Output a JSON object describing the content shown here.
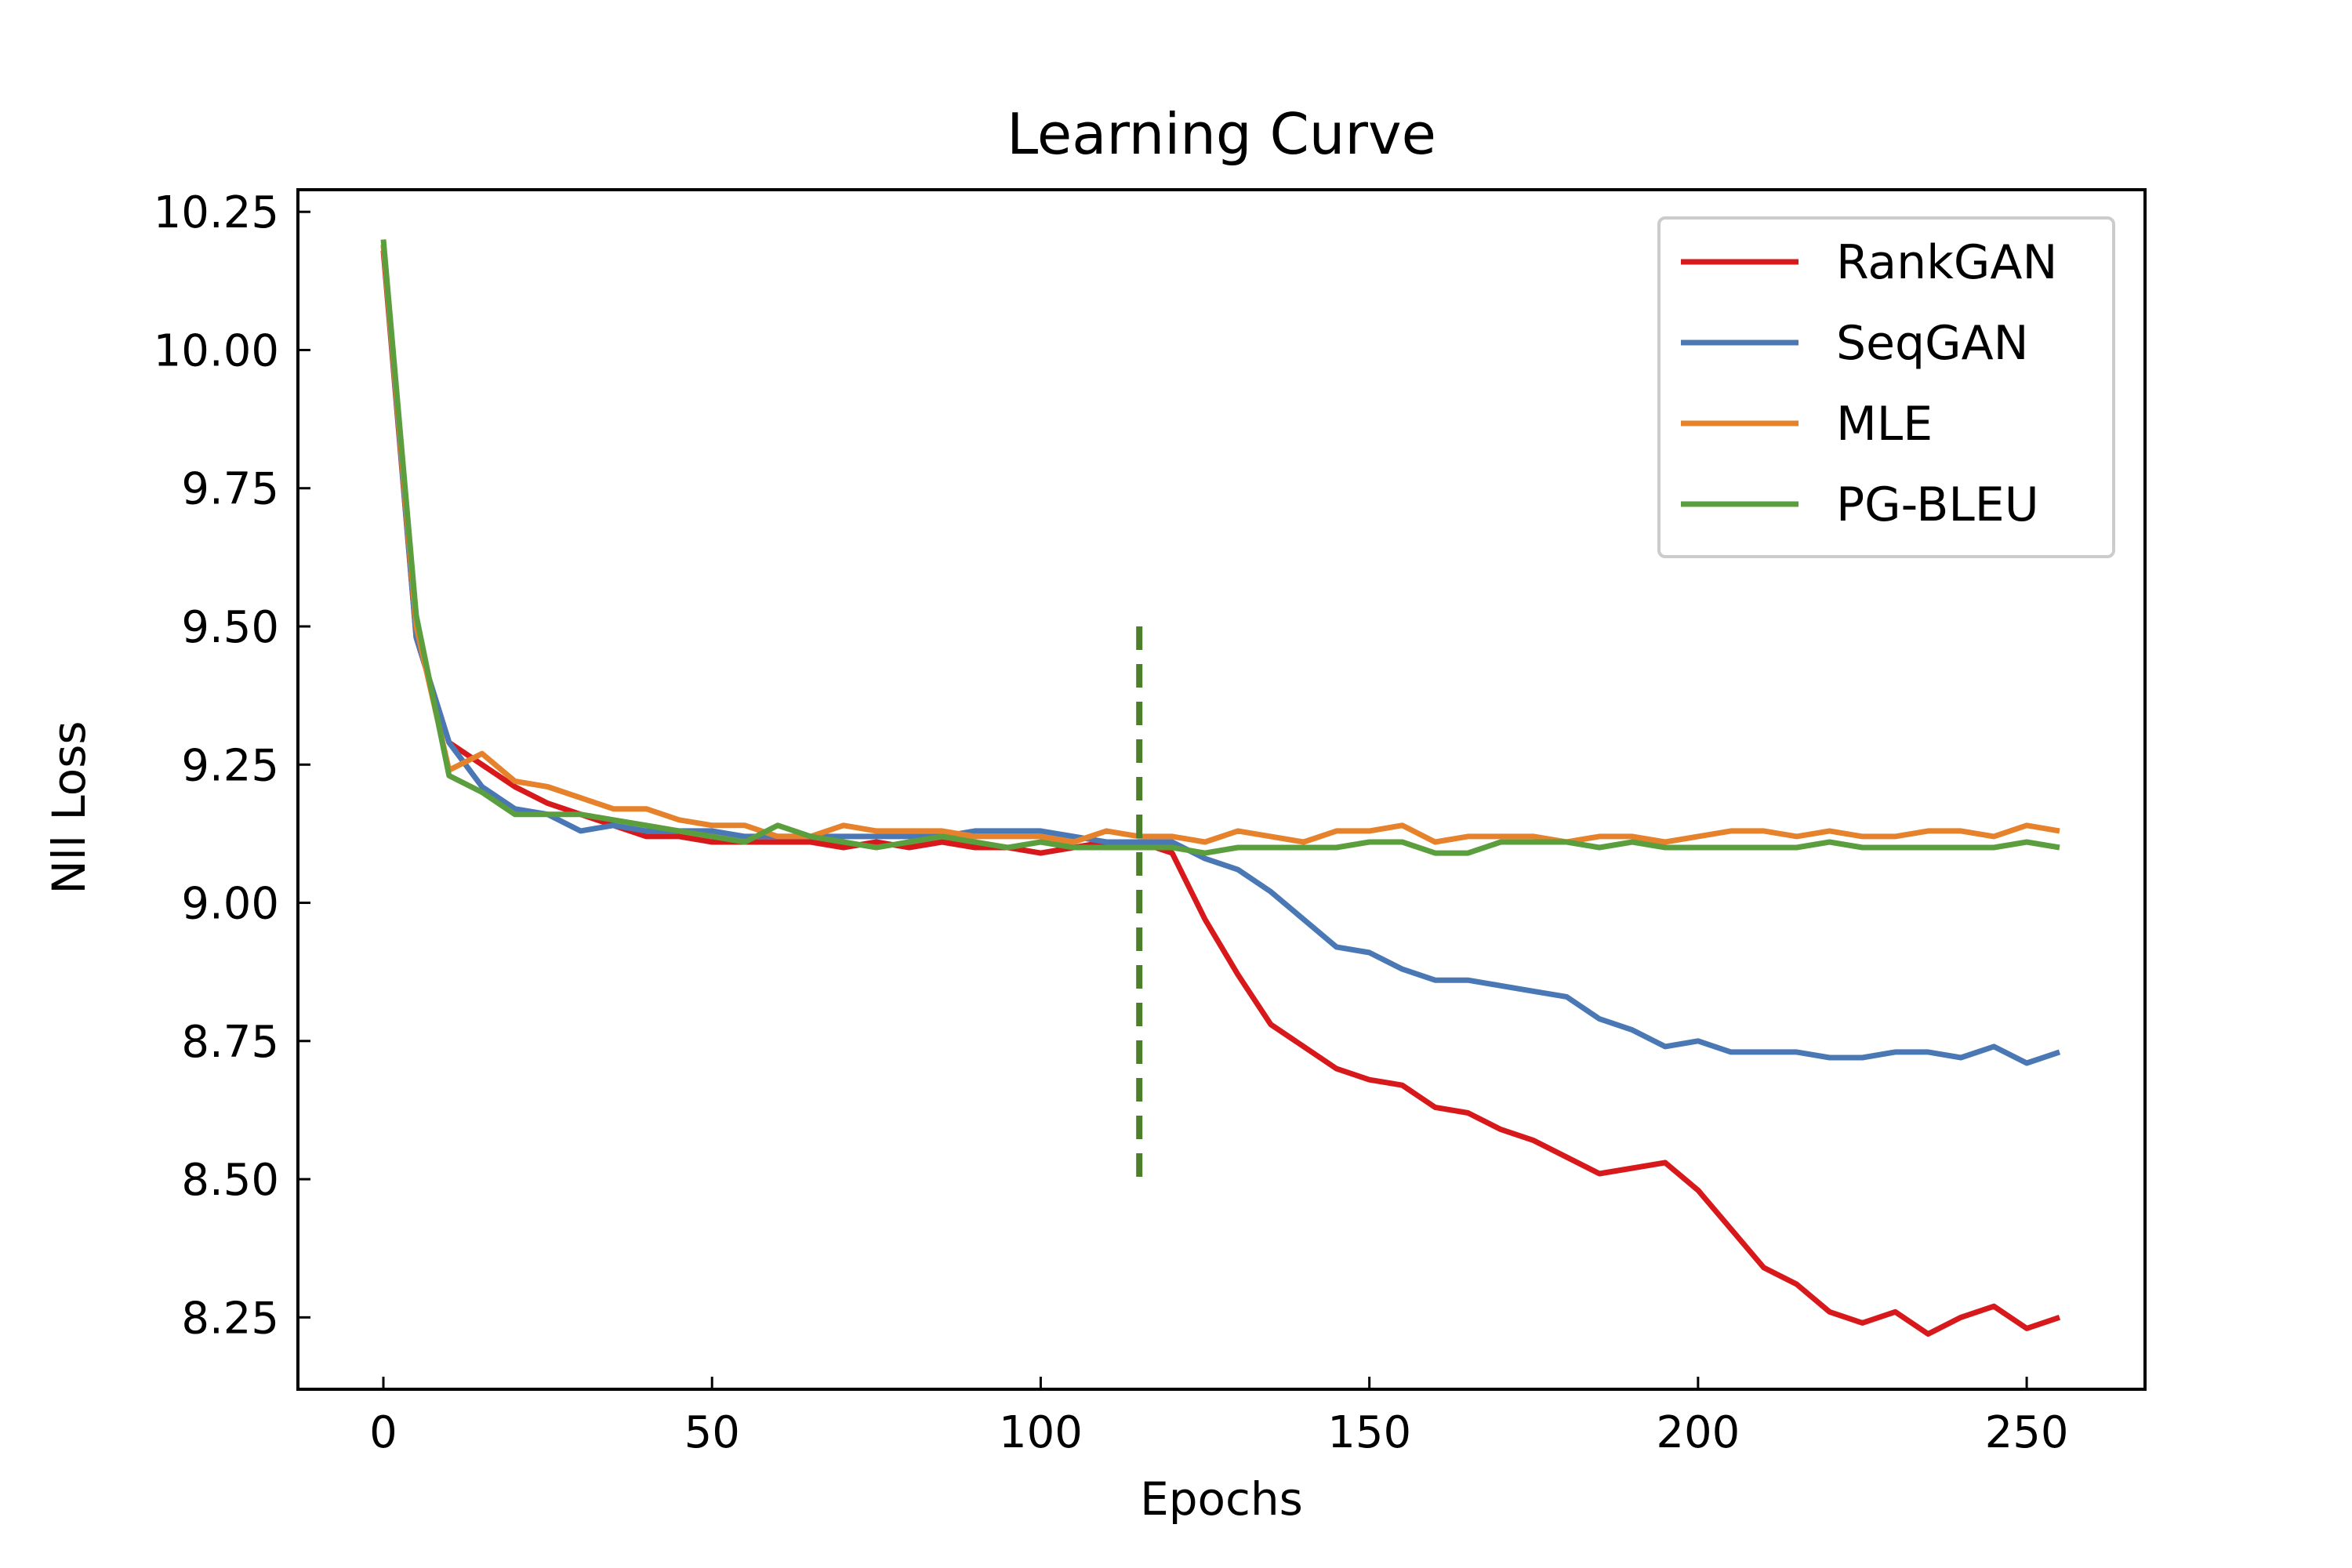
{
  "chart_data": {
    "type": "line",
    "title": "Learning Curve",
    "xlabel": "Epochs",
    "ylabel": "Nll Loss",
    "xlim": [
      -13,
      268
    ],
    "ylim": [
      8.12,
      10.29
    ],
    "xticks": [
      0,
      50,
      100,
      150,
      200,
      250
    ],
    "yticks": [
      8.25,
      8.5,
      8.75,
      9.0,
      9.25,
      9.5,
      9.75,
      10.0,
      10.25
    ],
    "ytick_labels": [
      "8.25",
      "8.50",
      "8.75",
      "9.00",
      "9.25",
      "9.50",
      "9.75",
      "10.00",
      "10.25"
    ],
    "grid": false,
    "legend_position": "top-right",
    "vline": {
      "x": 115,
      "y_range": [
        8.5,
        9.5
      ],
      "color": "#4d7f2a",
      "style": "dashed"
    },
    "x": [
      0,
      5,
      10,
      15,
      20,
      25,
      30,
      35,
      40,
      45,
      50,
      55,
      60,
      65,
      70,
      75,
      80,
      85,
      90,
      95,
      100,
      105,
      110,
      115,
      120,
      125,
      130,
      135,
      140,
      145,
      150,
      155,
      160,
      165,
      170,
      175,
      180,
      185,
      190,
      195,
      200,
      205,
      210,
      215,
      220,
      225,
      230,
      235,
      240,
      245,
      250,
      255
    ],
    "series": [
      {
        "name": "RankGAN",
        "color": "#d7191c",
        "values": [
          10.18,
          9.48,
          9.29,
          9.25,
          9.21,
          9.18,
          9.16,
          9.14,
          9.12,
          9.12,
          9.11,
          9.11,
          9.11,
          9.11,
          9.1,
          9.11,
          9.1,
          9.11,
          9.1,
          9.1,
          9.09,
          9.1,
          9.11,
          9.11,
          9.09,
          8.97,
          8.87,
          8.78,
          8.74,
          8.7,
          8.68,
          8.67,
          8.63,
          8.62,
          8.59,
          8.57,
          8.54,
          8.51,
          8.52,
          8.53,
          8.48,
          8.41,
          8.34,
          8.31,
          8.26,
          8.24,
          8.26,
          8.22,
          8.25,
          8.27,
          8.23,
          8.25
        ]
      },
      {
        "name": "SeqGAN",
        "color": "#4a78b5",
        "values": [
          10.19,
          9.48,
          9.29,
          9.21,
          9.17,
          9.16,
          9.13,
          9.14,
          9.13,
          9.13,
          9.13,
          9.12,
          9.12,
          9.12,
          9.12,
          9.12,
          9.12,
          9.12,
          9.13,
          9.13,
          9.13,
          9.12,
          9.11,
          9.11,
          9.11,
          9.08,
          9.06,
          9.02,
          8.97,
          8.92,
          8.91,
          8.88,
          8.86,
          8.86,
          8.85,
          8.84,
          8.83,
          8.79,
          8.77,
          8.74,
          8.75,
          8.73,
          8.73,
          8.73,
          8.72,
          8.72,
          8.73,
          8.73,
          8.72,
          8.74,
          8.71,
          8.73
        ]
      },
      {
        "name": "MLE",
        "color": "#e6822c",
        "values": [
          10.19,
          9.5,
          9.24,
          9.27,
          9.22,
          9.21,
          9.19,
          9.17,
          9.17,
          9.15,
          9.14,
          9.14,
          9.12,
          9.12,
          9.14,
          9.13,
          9.13,
          9.13,
          9.12,
          9.12,
          9.12,
          9.11,
          9.13,
          9.12,
          9.12,
          9.11,
          9.13,
          9.12,
          9.11,
          9.13,
          9.13,
          9.14,
          9.11,
          9.12,
          9.12,
          9.12,
          9.11,
          9.12,
          9.12,
          9.11,
          9.12,
          9.13,
          9.13,
          9.12,
          9.13,
          9.12,
          9.12,
          9.13,
          9.13,
          9.12,
          9.14,
          9.13
        ]
      },
      {
        "name": "PG-BLEU",
        "color": "#5b9e3d",
        "values": [
          10.2,
          9.52,
          9.23,
          9.2,
          9.16,
          9.16,
          9.16,
          9.15,
          9.14,
          9.13,
          9.12,
          9.11,
          9.14,
          9.12,
          9.11,
          9.1,
          9.11,
          9.12,
          9.11,
          9.1,
          9.11,
          9.1,
          9.1,
          9.1,
          9.1,
          9.09,
          9.1,
          9.1,
          9.1,
          9.1,
          9.11,
          9.11,
          9.09,
          9.09,
          9.11,
          9.11,
          9.11,
          9.1,
          9.11,
          9.1,
          9.1,
          9.1,
          9.1,
          9.1,
          9.11,
          9.1,
          9.1,
          9.1,
          9.1,
          9.1,
          9.11,
          9.1
        ]
      }
    ]
  }
}
